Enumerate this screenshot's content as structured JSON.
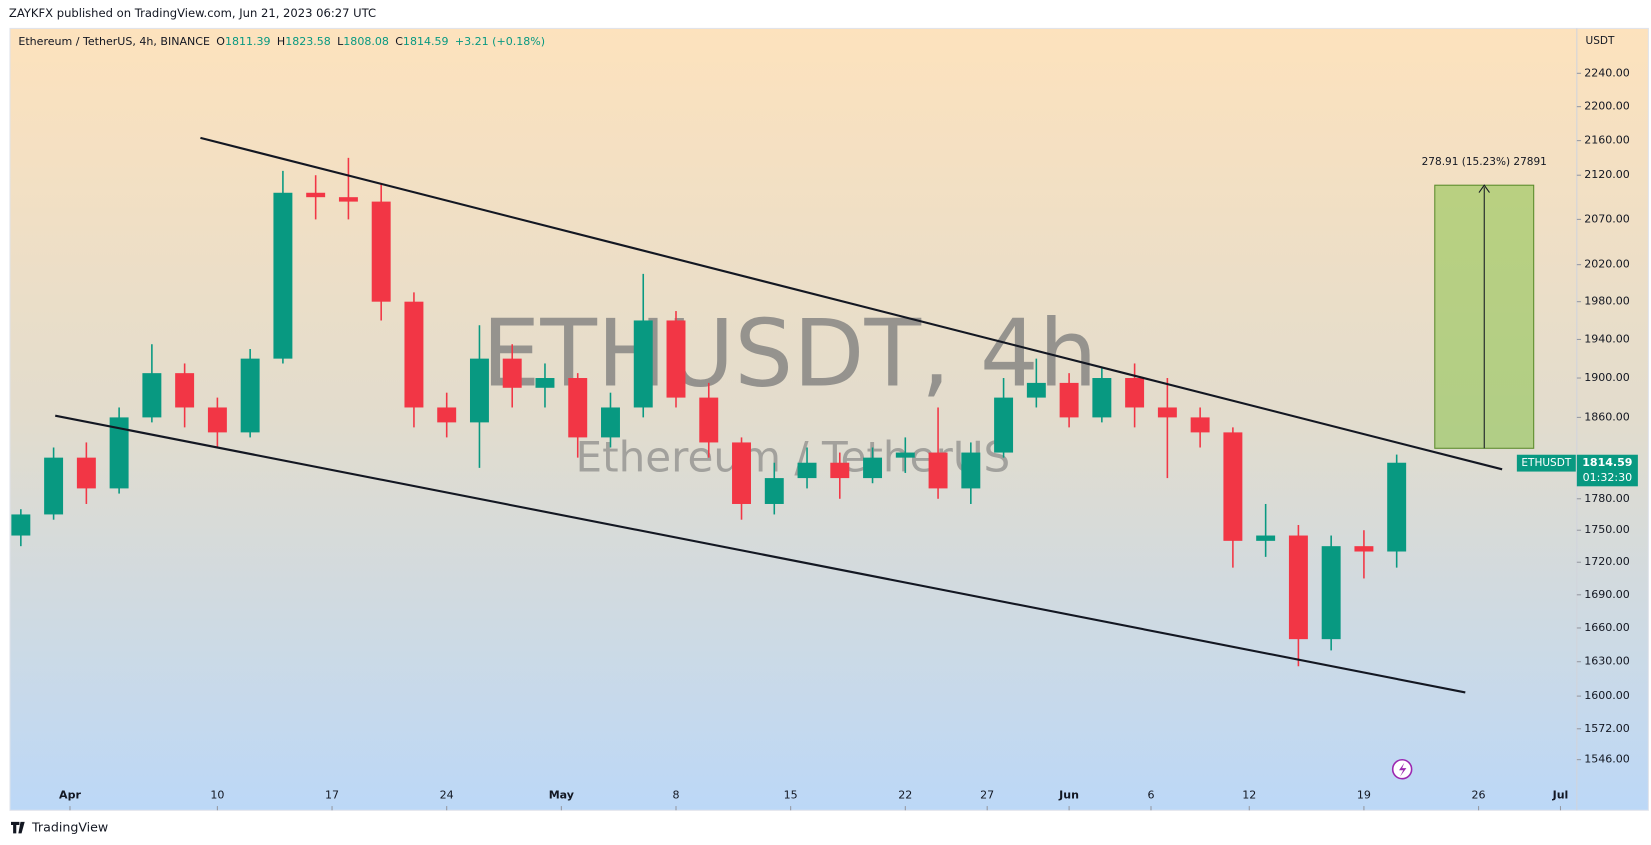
{
  "header": {
    "published": "ZAYKFX published on TradingView.com, Jun 21, 2023 06:27 UTC"
  },
  "chart_data": {
    "type": "candlestick",
    "symbol": "Ethereum / TetherUS, 4h, BINANCE",
    "ohlc": [
      {
        "key": "O",
        "value": "1811.39"
      },
      {
        "key": "H",
        "value": "1823.58"
      },
      {
        "key": "L",
        "value": "1808.08"
      },
      {
        "key": "C",
        "value": "1814.59"
      }
    ],
    "change": "+3.21 (+0.18%)",
    "currency": "USDT",
    "watermark": "ETHUSDT, 4h",
    "watermark_sub": "Ethereum / TetherUS",
    "measure_label": "278.91 (15.23%) 27891",
    "last_price": 1814.59,
    "countdown": "01:32:30",
    "log_scale": true,
    "up_color": "#089981",
    "down_color": "#f23645",
    "xlim": [
      -3.6,
      92
    ],
    "ylim": [
      1506,
      2295
    ],
    "xticks": [
      {
        "value": 0,
        "label": "Apr"
      },
      {
        "value": 9,
        "label": "10"
      },
      {
        "value": 16,
        "label": "17"
      },
      {
        "value": 23,
        "label": "24"
      },
      {
        "value": 30,
        "label": "May"
      },
      {
        "value": 37,
        "label": "8"
      },
      {
        "value": 44,
        "label": "15"
      },
      {
        "value": 51,
        "label": "22"
      },
      {
        "value": 56,
        "label": "27"
      },
      {
        "value": 61,
        "label": "Jun"
      },
      {
        "value": 66,
        "label": "6"
      },
      {
        "value": 72,
        "label": "12"
      },
      {
        "value": 79,
        "label": "19"
      },
      {
        "value": 86,
        "label": "26"
      },
      {
        "value": 91,
        "label": "Jul"
      }
    ],
    "yticks": [
      {
        "value": 2240,
        "label": "2240.00"
      },
      {
        "value": 2200,
        "label": "2200.00"
      },
      {
        "value": 2160,
        "label": "2160.00"
      },
      {
        "value": 2120,
        "label": "2120.00"
      },
      {
        "value": 2070,
        "label": "2070.00"
      },
      {
        "value": 2020,
        "label": "2020.00"
      },
      {
        "value": 1980,
        "label": "1980.00"
      },
      {
        "value": 1940,
        "label": "1940.00"
      },
      {
        "value": 1900,
        "label": "1900.00"
      },
      {
        "value": 1860,
        "label": "1860.00"
      },
      {
        "value": 1780,
        "label": "1780.00"
      },
      {
        "value": 1750,
        "label": "1750.00"
      },
      {
        "value": 1720,
        "label": "1720.00"
      },
      {
        "value": 1690,
        "label": "1690.00"
      },
      {
        "value": 1660,
        "label": "1660.00"
      },
      {
        "value": 1630,
        "label": "1630.00"
      },
      {
        "value": 1600,
        "label": "1600.00"
      },
      {
        "value": 1572,
        "label": "1572.00"
      },
      {
        "value": 1546,
        "label": "1546.00"
      }
    ],
    "series": [
      {
        "name": "ETHUSDT",
        "x": [
          -3,
          -1,
          1,
          3,
          5,
          7,
          9,
          11,
          13,
          15,
          17,
          19,
          21,
          23,
          25,
          27,
          29,
          31,
          33,
          35,
          37,
          39,
          41,
          43,
          45,
          47,
          49,
          51,
          53,
          55,
          57,
          59,
          61,
          63,
          65,
          67,
          69,
          71,
          73,
          75,
          77,
          79,
          81
        ],
        "open": [
          1745,
          1765,
          1820,
          1790,
          1860,
          1905,
          1870,
          1845,
          1920,
          2100,
          2095,
          2090,
          1980,
          1870,
          1855,
          1920,
          1890,
          1900,
          1840,
          1870,
          1960,
          1880,
          1835,
          1775,
          1800,
          1815,
          1800,
          1820,
          1825,
          1790,
          1825,
          1880,
          1895,
          1860,
          1900,
          1870,
          1860,
          1845,
          1740,
          1745,
          1650,
          1735,
          1730
        ],
        "high": [
          1770,
          1830,
          1835,
          1870,
          1935,
          1915,
          1880,
          1930,
          2125,
          2120,
          2140,
          2110,
          1990,
          1885,
          1955,
          1935,
          1915,
          1905,
          1885,
          2010,
          1970,
          1895,
          1840,
          1815,
          1830,
          1825,
          1830,
          1840,
          1870,
          1835,
          1900,
          1920,
          1905,
          1910,
          1915,
          1900,
          1870,
          1850,
          1775,
          1755,
          1745,
          1750,
          1823
        ],
        "low": [
          1735,
          1760,
          1775,
          1785,
          1855,
          1850,
          1830,
          1840,
          1915,
          2070,
          2070,
          1960,
          1850,
          1840,
          1810,
          1870,
          1870,
          1820,
          1830,
          1860,
          1870,
          1820,
          1760,
          1765,
          1790,
          1780,
          1795,
          1805,
          1780,
          1775,
          1820,
          1870,
          1850,
          1855,
          1850,
          1800,
          1830,
          1715,
          1725,
          1626,
          1640,
          1705,
          1715
        ],
        "close": [
          1765,
          1820,
          1790,
          1860,
          1905,
          1870,
          1845,
          1920,
          2100,
          2095,
          2090,
          1980,
          1870,
          1855,
          1920,
          1890,
          1900,
          1840,
          1870,
          1960,
          1880,
          1835,
          1775,
          1800,
          1815,
          1800,
          1820,
          1825,
          1790,
          1825,
          1880,
          1895,
          1860,
          1900,
          1870,
          1860,
          1845,
          1740,
          1745,
          1650,
          1735,
          1730,
          1815
        ]
      }
    ]
  },
  "footer": {
    "brand": "TradingView"
  }
}
